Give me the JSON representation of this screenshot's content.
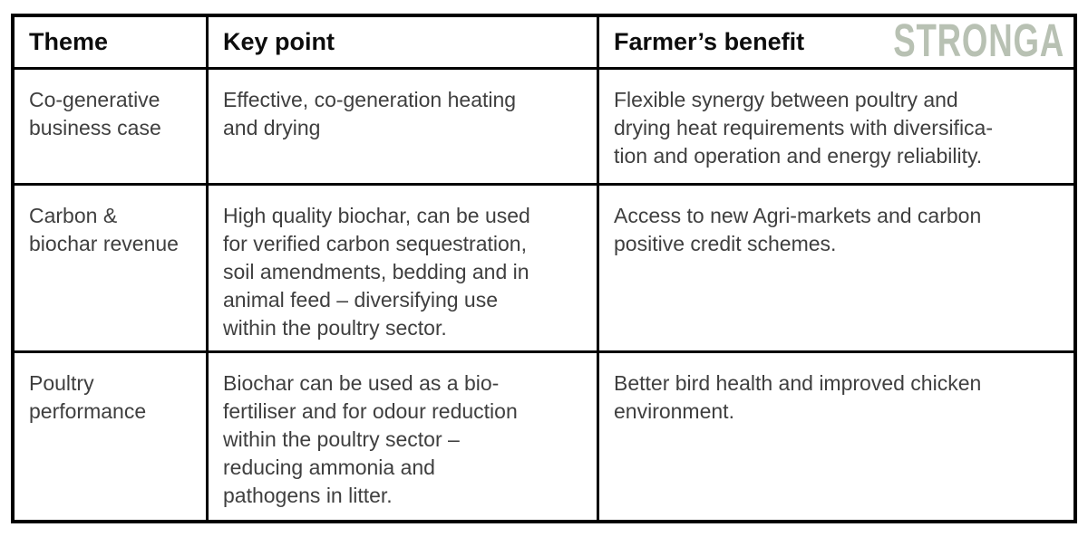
{
  "page": {
    "background_color": "#ffffff",
    "border_color": "#000000",
    "body_text_color": "#3f3f3f"
  },
  "brand": {
    "logo_text": "STRONGA",
    "logo_color": "#b8c1b3"
  },
  "table": {
    "headers": [
      {
        "label": "Theme"
      },
      {
        "label": "Key point"
      },
      {
        "label": "Farmer’s benefit"
      }
    ],
    "rows": [
      {
        "theme": "Co-generative\nbusiness case",
        "key_point": "Effective, co-generation heating\nand drying",
        "farmers_benefit": "Flexible synergy between poultry and\ndrying heat requirements with diversifica-\ntion and operation and energy reliability."
      },
      {
        "theme": "Carbon &\nbiochar revenue",
        "key_point": "High quality biochar, can be used\nfor verified carbon sequestration,\nsoil amendments, bedding and in\nanimal feed – diversifying use\nwithin the poultry sector.",
        "farmers_benefit": "Access to new Agri-markets and carbon\npositive credit schemes."
      },
      {
        "theme": "Poultry\nperformance",
        "key_point": "Biochar can be used as a bio-\nfertiliser and for odour reduction\nwithin the poultry sector –\nreducing ammonia and\npathogens in litter.",
        "farmers_benefit": "Better bird health and improved chicken\nenvironment."
      }
    ]
  }
}
